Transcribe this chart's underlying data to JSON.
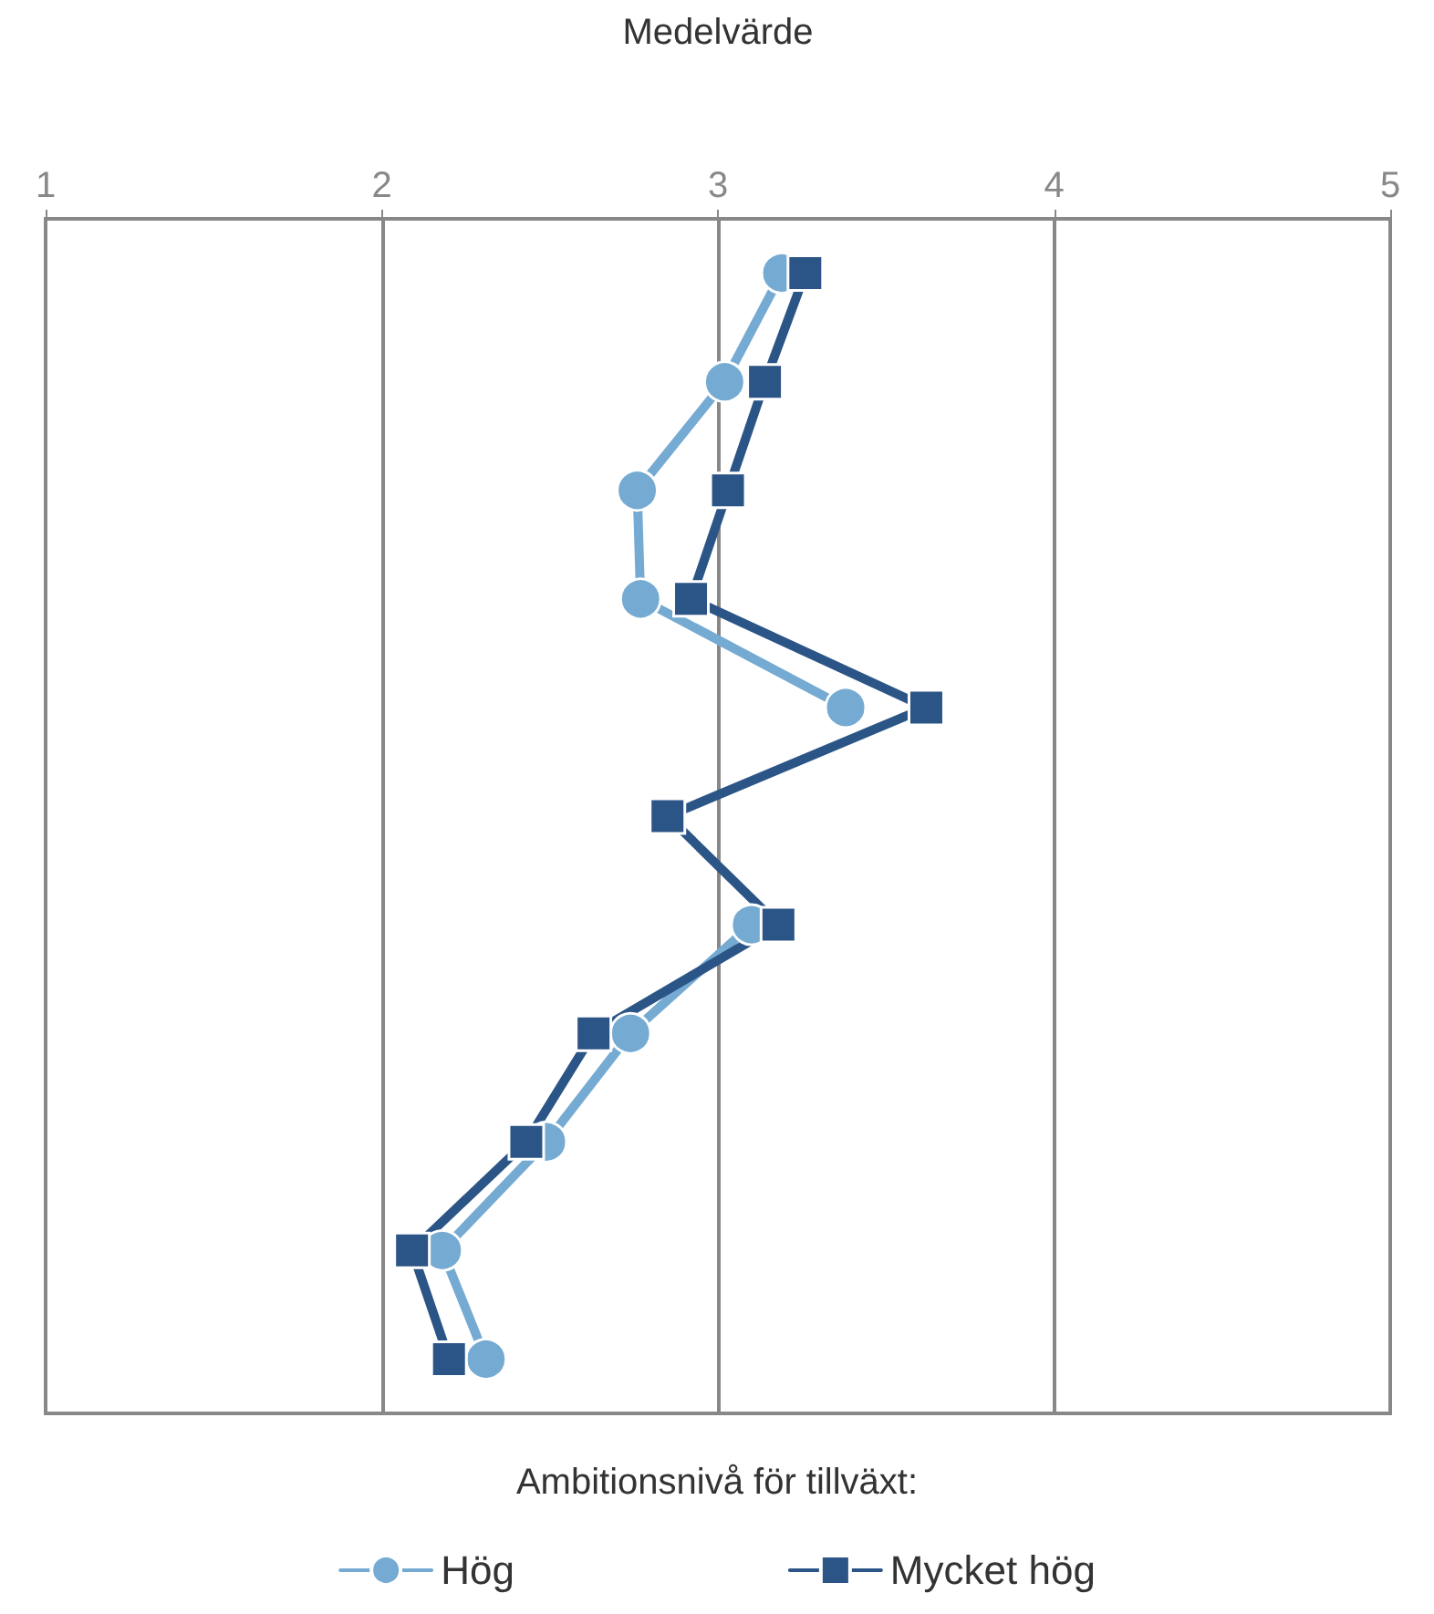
{
  "chart_data": {
    "type": "line",
    "orientation": "horizontal",
    "xlabel": "Medelvärde",
    "legend_title": "Ambitionsnivå för tillväxt:",
    "categories": [
      null,
      null,
      null,
      null,
      null,
      null,
      null,
      null,
      null,
      null,
      null
    ],
    "series": [
      {
        "name": "Hög",
        "color": "#75aad2",
        "marker": "circle",
        "values": [
          3.19,
          3.02,
          2.76,
          2.77,
          3.38,
          null,
          3.1,
          2.74,
          2.49,
          2.18,
          2.31
        ]
      },
      {
        "name": "Mycket hög",
        "color": "#2b5586",
        "marker": "square",
        "values": [
          3.26,
          3.14,
          3.03,
          2.92,
          3.62,
          2.85,
          3.18,
          2.63,
          2.43,
          2.09,
          2.2
        ]
      }
    ],
    "xlim": [
      1,
      5
    ],
    "xticks": [
      1,
      2,
      3,
      4,
      5
    ],
    "grid": "x",
    "legend": "bottom",
    "line_style": "solid"
  }
}
